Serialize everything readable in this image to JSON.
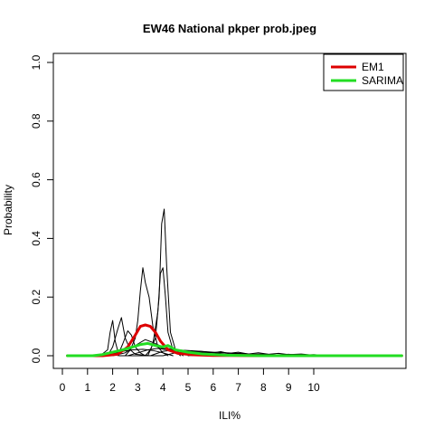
{
  "chart_data": {
    "type": "line",
    "title": "EW46 National pkper prob.jpeg",
    "xlabel": "ILI%",
    "ylabel": "Probability",
    "xlim": [
      0,
      13.5
    ],
    "ylim": [
      0,
      1.0
    ],
    "x_ticks": [
      0,
      1,
      2,
      3,
      4,
      5,
      6,
      7,
      8,
      9,
      10
    ],
    "x_tick_labels": [
      "0",
      "1",
      "2",
      "3",
      "4",
      "5",
      "6",
      "7",
      "8",
      "9",
      "10"
    ],
    "y_ticks": [
      0,
      0.2,
      0.4,
      0.6,
      0.8,
      1.0
    ],
    "y_tick_labels": [
      "0.0",
      "0.2",
      "0.4",
      "0.6",
      "0.8",
      "1.0"
    ],
    "grid": false,
    "legend_position": "top-right",
    "legend": [
      {
        "label": "EM1",
        "color": "#dd0000"
      },
      {
        "label": "SARIMA",
        "color": "#22dd22"
      }
    ],
    "series": [
      {
        "name": "EM1",
        "color": "#dd0000",
        "emphasis": true,
        "x": [
          0.2,
          1.6,
          2.2,
          2.6,
          2.9,
          3.1,
          3.3,
          3.5,
          3.7,
          3.9,
          4.2,
          4.6,
          5.2,
          6.0,
          8.0,
          13.5
        ],
        "y": [
          0.0,
          0.0,
          0.005,
          0.03,
          0.07,
          0.1,
          0.105,
          0.1,
          0.08,
          0.05,
          0.02,
          0.008,
          0.003,
          0.001,
          0.0,
          0.0
        ]
      },
      {
        "name": "SARIMA",
        "color": "#22dd22",
        "emphasis": true,
        "x": [
          0.2,
          1.2,
          1.6,
          2.0,
          2.4,
          2.8,
          3.1,
          3.4,
          3.7,
          4.0,
          4.2,
          4.5,
          5.0,
          5.6,
          6.5,
          8.0,
          13.5
        ],
        "y": [
          0.0,
          0.0,
          0.004,
          0.012,
          0.02,
          0.03,
          0.038,
          0.042,
          0.035,
          0.03,
          0.035,
          0.02,
          0.012,
          0.006,
          0.002,
          0.0,
          0.0
        ]
      },
      {
        "x": [
          1.5,
          1.8,
          1.9,
          2.0,
          2.1,
          2.25,
          2.4,
          3.0,
          4.0
        ],
        "y": [
          0.0,
          0.02,
          0.08,
          0.12,
          0.05,
          0.0,
          0.0,
          0.0,
          0.0
        ]
      },
      {
        "x": [
          1.8,
          2.0,
          2.2,
          2.35,
          2.5,
          2.7,
          2.9,
          3.5
        ],
        "y": [
          0.0,
          0.03,
          0.09,
          0.13,
          0.06,
          0.02,
          0.005,
          0.0
        ]
      },
      {
        "x": [
          2.2,
          2.4,
          2.6,
          2.75,
          2.9,
          3.1,
          3.3
        ],
        "y": [
          0.0,
          0.04,
          0.085,
          0.07,
          0.03,
          0.01,
          0.0
        ]
      },
      {
        "x": [
          2.5,
          2.7,
          2.9,
          3.0,
          3.1,
          3.2,
          3.3,
          3.45,
          3.6,
          3.8,
          4.0,
          4.2
        ],
        "y": [
          0.0,
          0.02,
          0.06,
          0.12,
          0.22,
          0.3,
          0.25,
          0.2,
          0.1,
          0.03,
          0.01,
          0.0
        ]
      },
      {
        "x": [
          3.3,
          3.5,
          3.7,
          3.85,
          3.95,
          4.05,
          4.15,
          4.3,
          4.5,
          4.8
        ],
        "y": [
          0.0,
          0.02,
          0.06,
          0.2,
          0.45,
          0.5,
          0.3,
          0.08,
          0.02,
          0.0
        ]
      },
      {
        "x": [
          3.4,
          3.6,
          3.8,
          3.9,
          4.0,
          4.1,
          4.2,
          4.4,
          4.7
        ],
        "y": [
          0.0,
          0.04,
          0.15,
          0.28,
          0.3,
          0.2,
          0.08,
          0.02,
          0.0
        ]
      },
      {
        "x": [
          2.0,
          2.5,
          3.0,
          3.3,
          3.6,
          4.0,
          4.4,
          5.0,
          5.5
        ],
        "y": [
          0.0,
          0.01,
          0.04,
          0.055,
          0.045,
          0.03,
          0.02,
          0.008,
          0.0
        ]
      },
      {
        "x": [
          1.5,
          2.0,
          2.5,
          3.0,
          3.4,
          3.8,
          4.2,
          4.6,
          5.2
        ],
        "y": [
          0.0,
          0.005,
          0.02,
          0.035,
          0.04,
          0.03,
          0.02,
          0.01,
          0.0
        ]
      },
      {
        "x": [
          2.6,
          3.0,
          3.4,
          3.8,
          4.2,
          4.6,
          5.0,
          5.5,
          6.0,
          6.5,
          7.0,
          7.6
        ],
        "y": [
          0.0,
          0.01,
          0.02,
          0.025,
          0.02,
          0.018,
          0.015,
          0.012,
          0.01,
          0.006,
          0.003,
          0.0
        ]
      },
      {
        "x": [
          3.5,
          4.0,
          4.5,
          5.0,
          5.5,
          6.0,
          6.5,
          7.0,
          7.5,
          8.0,
          8.5,
          9.0
        ],
        "y": [
          0.0,
          0.015,
          0.02,
          0.018,
          0.015,
          0.012,
          0.01,
          0.008,
          0.006,
          0.005,
          0.003,
          0.0
        ]
      },
      {
        "x": [
          4.0,
          4.5,
          5.0,
          5.5,
          6.0,
          6.3,
          6.6,
          7.0,
          7.4,
          7.8,
          8.2,
          8.6,
          9.0,
          9.5,
          10.0,
          10.4
        ],
        "y": [
          0.0,
          0.01,
          0.012,
          0.015,
          0.01,
          0.014,
          0.008,
          0.012,
          0.006,
          0.01,
          0.005,
          0.008,
          0.004,
          0.006,
          0.002,
          0.0
        ]
      },
      {
        "x": [
          5.0,
          5.5,
          6.0,
          6.5,
          7.0,
          7.5,
          8.0,
          8.5,
          9.0,
          9.5,
          10.0,
          10.5,
          11.0
        ],
        "y": [
          0.0,
          0.004,
          0.006,
          0.005,
          0.007,
          0.004,
          0.006,
          0.003,
          0.005,
          0.002,
          0.004,
          0.001,
          0.0
        ]
      },
      {
        "x": [
          1.6,
          2.0,
          2.4,
          2.8,
          3.2,
          3.6,
          4.0,
          4.4
        ],
        "y": [
          0.0,
          0.008,
          0.015,
          0.02,
          0.022,
          0.018,
          0.01,
          0.0
        ]
      }
    ]
  }
}
